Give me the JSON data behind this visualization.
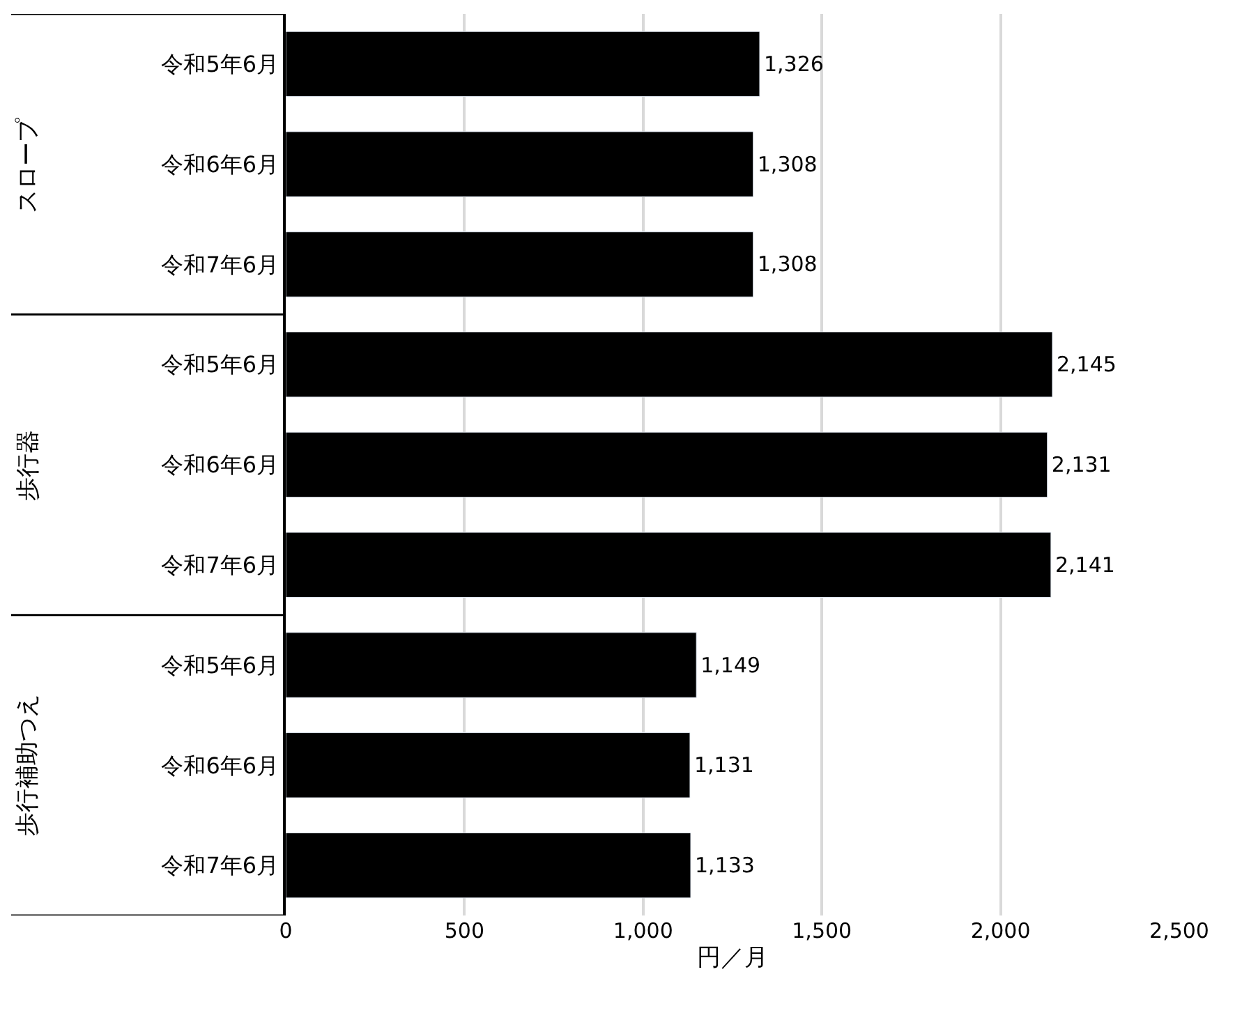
{
  "chart_data": {
    "type": "bar",
    "orientation": "horizontal",
    "categories": [
      "令和5年6月",
      "令和6年6月",
      "令和7年6月",
      "令和5年6月",
      "令和6年6月",
      "令和7年6月",
      "令和5年6月",
      "令和6年6月",
      "令和7年6月"
    ],
    "values": [
      1326,
      1308,
      1308,
      2145,
      2131,
      2141,
      1149,
      1131,
      1133
    ],
    "color": "#000000",
    "xlabel": "円／月",
    "annotations": [
      "スロープ",
      "歩行器",
      "歩行補助つえ"
    ],
    "xlim": [
      0,
      2500
    ],
    "xticks": [
      0,
      500,
      {
        "value": 1000,
        "label": "1,000"
      },
      {
        "value": 1500,
        "label": "1,500"
      },
      {
        "value": 2000,
        "label": "2,000"
      },
      {
        "value": 2500,
        "label": "2,500"
      }
    ],
    "value_labels": [
      "1,326",
      "1,308",
      "1,308",
      "2,145",
      "2,131",
      "2,141",
      "1,149",
      "1,131",
      "1,133"
    ],
    "grid": "x"
  }
}
